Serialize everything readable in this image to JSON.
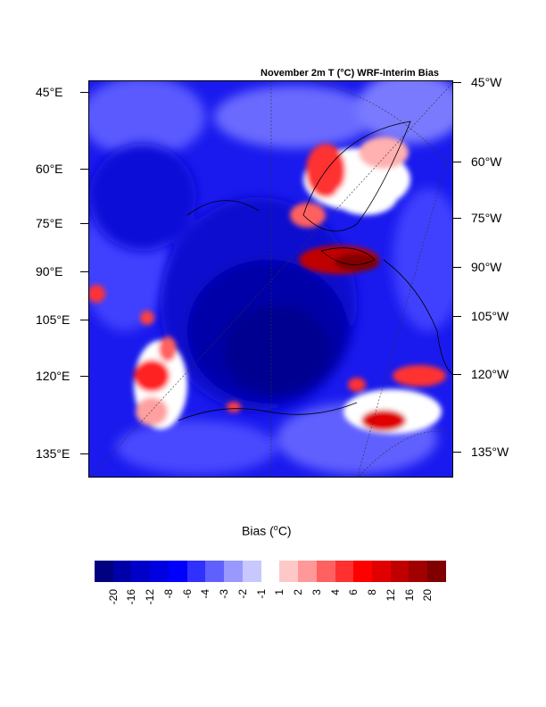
{
  "title": "November 2m T (°C) WRF-Interim Bias",
  "left_ticks": [
    "45°E",
    "60°E",
    "75°E",
    "90°E",
    "105°E",
    "120°E",
    "135°E"
  ],
  "right_ticks": [
    "45°W",
    "60°W",
    "75°W",
    "90°W",
    "105°W",
    "120°W",
    "135°W"
  ],
  "colorbar": {
    "title_main": "Bias (",
    "title_sup": "o",
    "title_end": "C)",
    "labels": [
      "-20",
      "-16",
      "-12",
      "-8",
      "-6",
      "-4",
      "-3",
      "-2",
      "-1",
      "1",
      "2",
      "3",
      "4",
      "6",
      "8",
      "12",
      "16",
      "20"
    ],
    "colors": [
      "#000080",
      "#0000a8",
      "#0000c8",
      "#0000e0",
      "#0000ff",
      "#3030ff",
      "#6060ff",
      "#9898ff",
      "#c8c8ff",
      "#ffffff",
      "#ffc8c8",
      "#ff9898",
      "#ff6060",
      "#ff3030",
      "#ff0000",
      "#e00000",
      "#c00000",
      "#a00000",
      "#800000"
    ]
  }
}
